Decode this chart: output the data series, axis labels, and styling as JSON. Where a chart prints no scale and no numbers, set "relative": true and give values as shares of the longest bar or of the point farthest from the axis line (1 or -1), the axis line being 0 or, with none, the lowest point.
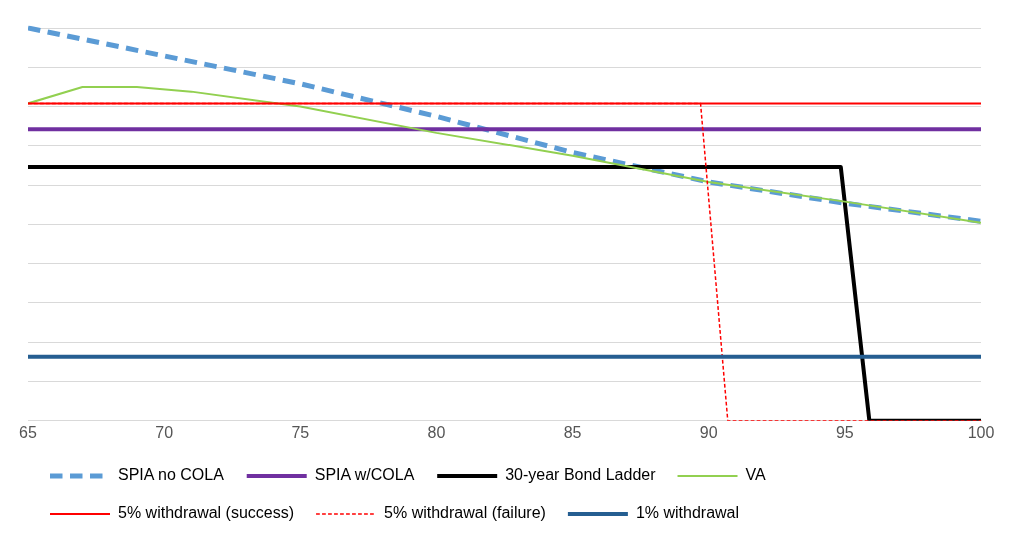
{
  "chart_data": {
    "type": "line",
    "relative": true,
    "xlim": [
      65,
      100
    ],
    "xticks": [
      65,
      70,
      75,
      80,
      85,
      90,
      95,
      100
    ],
    "grid": "y",
    "legend": "bottom",
    "marker": "none",
    "series": [
      {
        "name": "SPIA no COLA",
        "color": "#5b9bd5",
        "line_style": "dashed",
        "x": [
          65,
          70,
          75,
          80,
          85,
          90,
          95,
          100
        ],
        "values": [
          1,
          0.929,
          0.858,
          0.775,
          0.683,
          0.608,
          0.554,
          0.508
        ]
      },
      {
        "name": "SPIA w/COLA",
        "color": "#7030a0",
        "line_style": "solid",
        "x": [
          65,
          100
        ],
        "values": [
          0.742,
          0.742
        ]
      },
      {
        "name": "30-year Bond Ladder",
        "color": "#000000",
        "line_style": "solid",
        "x": [
          65,
          94.85,
          95.9,
          100
        ],
        "values": [
          0.646,
          0.646,
          0,
          0
        ]
      },
      {
        "name": "VA",
        "color": "#92d050",
        "line_style": "solid",
        "x": [
          65,
          67,
          69,
          71,
          75,
          80,
          85,
          90,
          95,
          100
        ],
        "values": [
          0.808,
          0.85,
          0.85,
          0.838,
          0.8,
          0.733,
          0.675,
          0.608,
          0.558,
          0.504
        ]
      },
      {
        "name": "5% withdrawal (success)",
        "color": "#ff0000",
        "line_style": "solid",
        "x": [
          65,
          100
        ],
        "values": [
          0.808,
          0.808
        ]
      },
      {
        "name": "5% withdrawal (failure)",
        "color": "#ff0000",
        "line_style": "dashed",
        "x": [
          65,
          89.7,
          90.7,
          100
        ],
        "values": [
          0.808,
          0.808,
          0,
          0
        ]
      },
      {
        "name": "1% withdrawal",
        "color": "#255e91",
        "line_style": "solid",
        "x": [
          65,
          100
        ],
        "values": [
          0.163,
          0.163
        ]
      }
    ]
  }
}
